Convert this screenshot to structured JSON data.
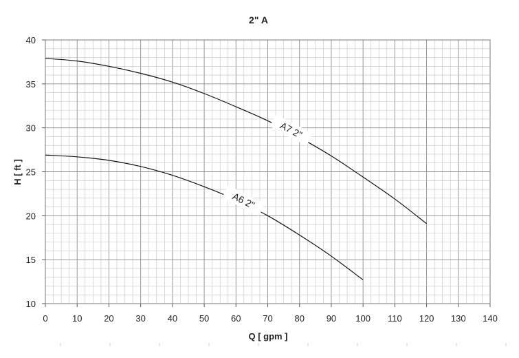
{
  "chart_data": {
    "type": "line",
    "title": "2\"  A",
    "xlabel": "Q [ gpm ]",
    "ylabel": "H [ ft ]",
    "xlim": [
      0,
      140
    ],
    "ylim": [
      10,
      40
    ],
    "x_ticks": [
      0,
      10,
      20,
      30,
      40,
      50,
      60,
      70,
      80,
      90,
      100,
      110,
      120,
      130,
      140
    ],
    "y_ticks": [
      10,
      15,
      20,
      25,
      30,
      35,
      40
    ],
    "grid": true,
    "legend": "none",
    "series": [
      {
        "name": "A7 2\"",
        "x": [
          0,
          10,
          20,
          30,
          40,
          50,
          60,
          70,
          80,
          90,
          100,
          110,
          120
        ],
        "y": [
          37.9,
          37.6,
          37.0,
          36.2,
          35.2,
          33.9,
          32.4,
          30.8,
          28.9,
          26.8,
          24.4,
          21.9,
          19.1
        ]
      },
      {
        "name": "A6 2\"",
        "x": [
          0,
          10,
          20,
          30,
          40,
          50,
          60,
          70,
          80,
          90,
          100
        ],
        "y": [
          26.9,
          26.7,
          26.3,
          25.6,
          24.6,
          23.3,
          21.8,
          20.0,
          17.8,
          15.4,
          12.7
        ]
      }
    ]
  }
}
